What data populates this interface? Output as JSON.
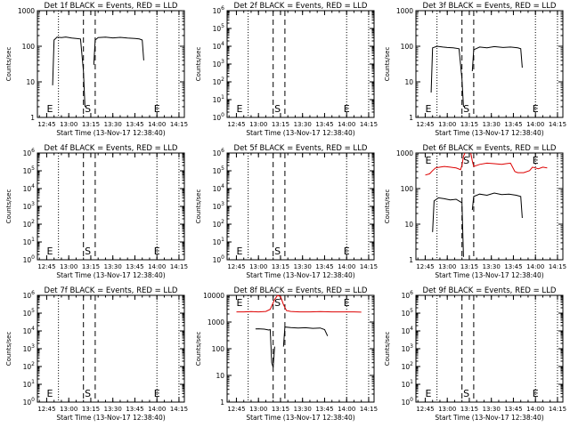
{
  "common": {
    "xlabel": "Start Time (13-Nov-17 12:38:40)",
    "ylabel": "Counts/sec",
    "x_tick_labels": [
      "12:45",
      "13:00",
      "13:15",
      "13:30",
      "13:45",
      "14:00",
      "14:15"
    ]
  },
  "chart_data": [
    {
      "type": "line",
      "title": "Det 1f BLACK = Events, RED = LLD",
      "xlabel": "Start Time (13-Nov-17 12:38:40)",
      "ylabel": "Counts/sec",
      "yscale": "log",
      "ylim": [
        1,
        1000
      ],
      "y_tick_labels": [
        "1",
        "10",
        "100",
        "1000"
      ],
      "markers": [
        {
          "label": "E",
          "time": "12:45"
        },
        {
          "label": "S",
          "time": "13:13"
        },
        {
          "label": "E",
          "time": "14:00"
        }
      ],
      "series": [
        {
          "color": "#000000",
          "segments": [
            [
              [
                "12:49",
                8
              ],
              [
                "12:50",
                150
              ],
              [
                "12:52",
                180
              ],
              [
                "12:55",
                175
              ],
              [
                "12:58",
                182
              ],
              [
                "13:02",
                170
              ],
              [
                "13:05",
                165
              ],
              [
                "13:08",
                160
              ],
              [
                "13:10",
                20
              ],
              [
                "13:11",
                2
              ]
            ],
            [
              [
                "13:17",
                30
              ],
              [
                "13:18",
                150
              ],
              [
                "13:20",
                175
              ],
              [
                "13:25",
                180
              ],
              [
                "13:30",
                172
              ],
              [
                "13:35",
                178
              ],
              [
                "13:40",
                170
              ],
              [
                "13:45",
                165
              ],
              [
                "13:48",
                160
              ],
              [
                "13:50",
                150
              ],
              [
                "13:51",
                40
              ]
            ]
          ]
        }
      ]
    },
    {
      "type": "line",
      "title": "Det 2f BLACK = Events, RED = LLD",
      "xlabel": "Start Time (13-Nov-17 12:38:40)",
      "ylabel": "Counts/sec",
      "yscale": "log",
      "ylim": [
        1,
        1000000
      ],
      "y_tick_labels": [
        "10^0",
        "10^1",
        "10^2",
        "10^3",
        "10^4",
        "10^5",
        "10^6"
      ],
      "markers": [
        {
          "label": "E",
          "time": "12:45"
        },
        {
          "label": "S",
          "time": "13:13"
        },
        {
          "label": "E",
          "time": "14:00"
        }
      ],
      "series": []
    },
    {
      "type": "line",
      "title": "Det 3f BLACK = Events, RED = LLD",
      "xlabel": "Start Time (13-Nov-17 12:38:40)",
      "ylabel": "Counts/sec",
      "yscale": "log",
      "ylim": [
        1,
        1000
      ],
      "y_tick_labels": [
        "1",
        "10",
        "100",
        "1000"
      ],
      "markers": [
        {
          "label": "E",
          "time": "12:45"
        },
        {
          "label": "S",
          "time": "13:13"
        },
        {
          "label": "E",
          "time": "14:00"
        }
      ],
      "series": [
        {
          "color": "#000000",
          "segments": [
            [
              [
                "12:49",
                5
              ],
              [
                "12:50",
                90
              ],
              [
                "12:53",
                100
              ],
              [
                "12:57",
                95
              ],
              [
                "13:00",
                92
              ],
              [
                "13:04",
                90
              ],
              [
                "13:08",
                85
              ],
              [
                "13:10",
                12
              ],
              [
                "13:11",
                2
              ]
            ],
            [
              [
                "13:17",
                20
              ],
              [
                "13:18",
                80
              ],
              [
                "13:22",
                95
              ],
              [
                "13:27",
                90
              ],
              [
                "13:32",
                98
              ],
              [
                "13:38",
                92
              ],
              [
                "13:43",
                95
              ],
              [
                "13:48",
                90
              ],
              [
                "13:50",
                85
              ],
              [
                "13:51",
                25
              ]
            ]
          ]
        }
      ]
    },
    {
      "type": "line",
      "title": "Det 4f BLACK = Events, RED = LLD",
      "xlabel": "Start Time (13-Nov-17 12:38:40)",
      "ylabel": "Counts/sec",
      "yscale": "log",
      "ylim": [
        1,
        1000000
      ],
      "y_tick_labels": [
        "10^0",
        "10^1",
        "10^2",
        "10^3",
        "10^4",
        "10^5",
        "10^6"
      ],
      "markers": [
        {
          "label": "E",
          "time": "12:45"
        },
        {
          "label": "S",
          "time": "13:13"
        },
        {
          "label": "E",
          "time": "14:00"
        }
      ],
      "series": []
    },
    {
      "type": "line",
      "title": "Det 5f BLACK = Events, RED = LLD",
      "xlabel": "Start Time (13-Nov-17 12:38:40)",
      "ylabel": "Counts/sec",
      "yscale": "log",
      "ylim": [
        1,
        1000000
      ],
      "y_tick_labels": [
        "10^0",
        "10^1",
        "10^2",
        "10^3",
        "10^4",
        "10^5",
        "10^6"
      ],
      "markers": [
        {
          "label": "E",
          "time": "12:45"
        },
        {
          "label": "S",
          "time": "13:13"
        },
        {
          "label": "E",
          "time": "14:00"
        }
      ],
      "series": []
    },
    {
      "type": "line",
      "title": "Det 6f BLACK = Events, RED = LLD",
      "xlabel": "Start Time (13-Nov-17 12:38:40)",
      "ylabel": "Counts/sec",
      "yscale": "log",
      "ylim": [
        1,
        1000
      ],
      "y_tick_labels": [
        "1",
        "10",
        "100",
        "1000"
      ],
      "markers": [
        {
          "label": "E",
          "time": "12:45"
        },
        {
          "label": "S",
          "time": "13:13"
        },
        {
          "label": "E",
          "time": "14:00"
        }
      ],
      "series": [
        {
          "color": "#000000",
          "segments": [
            [
              [
                "12:50",
                6
              ],
              [
                "12:51",
                45
              ],
              [
                "12:54",
                55
              ],
              [
                "12:58",
                52
              ],
              [
                "13:02",
                48
              ],
              [
                "13:06",
                50
              ],
              [
                "13:10",
                40
              ],
              [
                "13:11",
                1.2
              ]
            ],
            [
              [
                "13:17",
                25
              ],
              [
                "13:18",
                60
              ],
              [
                "13:22",
                70
              ],
              [
                "13:27",
                65
              ],
              [
                "13:32",
                75
              ],
              [
                "13:37",
                68
              ],
              [
                "13:42",
                70
              ],
              [
                "13:47",
                65
              ],
              [
                "13:50",
                60
              ],
              [
                "13:51",
                15
              ]
            ]
          ]
        },
        {
          "color": "#dd0000",
          "segments": [
            [
              [
                "12:45",
                240
              ],
              [
                "12:48",
                260
              ],
              [
                "12:50",
                320
              ],
              [
                "12:52",
                380
              ],
              [
                "12:55",
                400
              ],
              [
                "12:58",
                420
              ],
              [
                "13:02",
                400
              ],
              [
                "13:06",
                380
              ],
              [
                "13:09",
                340
              ],
              [
                "13:10",
                450
              ],
              [
                "13:11",
                800
              ],
              [
                "13:12",
                1000
              ]
            ],
            [
              [
                "13:16",
                1000
              ],
              [
                "13:17",
                600
              ],
              [
                "13:18",
                420
              ],
              [
                "13:22",
                480
              ],
              [
                "13:27",
                520
              ],
              [
                "13:32",
                500
              ],
              [
                "13:37",
                480
              ],
              [
                "13:40",
                500
              ],
              [
                "13:43",
                520
              ],
              [
                "13:46",
                300
              ],
              [
                "13:48",
                280
              ],
              [
                "13:52",
                280
              ],
              [
                "13:56",
                320
              ],
              [
                "13:58",
                400
              ],
              [
                "14:02",
                360
              ],
              [
                "14:05",
                400
              ],
              [
                "14:08",
                380
              ]
            ]
          ]
        }
      ]
    },
    {
      "type": "line",
      "title": "Det 7f BLACK = Events, RED = LLD",
      "xlabel": "Start Time (13-Nov-17 12:38:40)",
      "ylabel": "Counts/sec",
      "yscale": "log",
      "ylim": [
        1,
        1000000
      ],
      "y_tick_labels": [
        "10^0",
        "10^1",
        "10^2",
        "10^3",
        "10^4",
        "10^5",
        "10^6"
      ],
      "markers": [
        {
          "label": "E",
          "time": "12:45"
        },
        {
          "label": "S",
          "time": "13:13"
        },
        {
          "label": "E",
          "time": "14:00"
        }
      ],
      "series": []
    },
    {
      "type": "line",
      "title": "Det 8f BLACK = Events, RED = LLD",
      "xlabel": "Start Time (13-Nov-17 12:38:40)",
      "ylabel": "Counts/sec",
      "yscale": "log",
      "ylim": [
        1,
        10000
      ],
      "y_tick_labels": [
        "1",
        "10",
        "100",
        "1000",
        "10000"
      ],
      "markers": [
        {
          "label": "E",
          "time": "12:45"
        },
        {
          "label": "S",
          "time": "13:13"
        },
        {
          "label": "E",
          "time": "14:00"
        }
      ],
      "series": [
        {
          "color": "#000000",
          "segments": [
            [
              [
                "12:58",
                550
              ],
              [
                "13:00",
                560
              ],
              [
                "13:04",
                540
              ],
              [
                "13:07",
                500
              ],
              [
                "13:08",
                520
              ],
              [
                "13:09",
                30
              ],
              [
                "13:10",
                20
              ],
              [
                "13:11",
                120
              ]
            ],
            [
              [
                "13:17",
                120
              ],
              [
                "13:18",
                650
              ],
              [
                "13:22",
                620
              ],
              [
                "13:27",
                600
              ],
              [
                "13:32",
                610
              ],
              [
                "13:37",
                580
              ],
              [
                "13:42",
                600
              ],
              [
                "13:45",
                520
              ],
              [
                "13:47",
                300
              ]
            ]
          ]
        },
        {
          "color": "#dd0000",
          "segments": [
            [
              [
                "12:45",
                2400
              ],
              [
                "12:50",
                2400
              ],
              [
                "12:55",
                2450
              ],
              [
                "13:00",
                2400
              ],
              [
                "13:05",
                2500
              ],
              [
                "13:08",
                3000
              ],
              [
                "13:11",
                7000
              ],
              [
                "13:13",
                10000
              ],
              [
                "13:15",
                9000
              ],
              [
                "13:17",
                4500
              ],
              [
                "13:19",
                2700
              ],
              [
                "13:22",
                2500
              ],
              [
                "13:28",
                2400
              ],
              [
                "13:35",
                2400
              ],
              [
                "13:42",
                2450
              ],
              [
                "13:50",
                2400
              ],
              [
                "13:58",
                2400
              ],
              [
                "14:05",
                2400
              ],
              [
                "14:10",
                2350
              ]
            ]
          ]
        }
      ]
    },
    {
      "type": "line",
      "title": "Det 9f BLACK = Events, RED = LLD",
      "xlabel": "Start Time (13-Nov-17 12:38:40)",
      "ylabel": "Counts/sec",
      "yscale": "log",
      "ylim": [
        1,
        1000000
      ],
      "y_tick_labels": [
        "10^0",
        "10^1",
        "10^2",
        "10^3",
        "10^4",
        "10^5",
        "10^6"
      ],
      "markers": [
        {
          "label": "E",
          "time": "12:45"
        },
        {
          "label": "S",
          "time": "13:13"
        },
        {
          "label": "E",
          "time": "14:00"
        }
      ],
      "series": []
    }
  ]
}
